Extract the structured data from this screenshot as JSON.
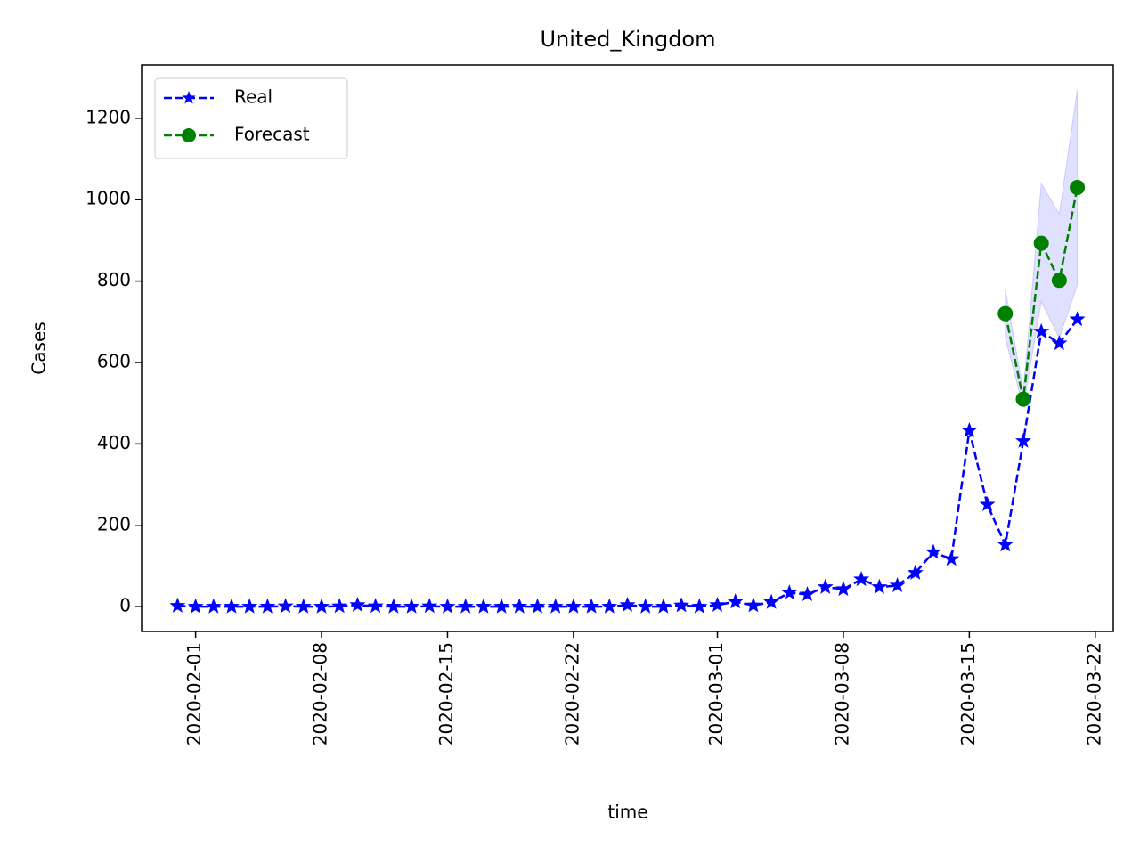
{
  "chart_data": {
    "type": "line",
    "title": "United_Kingdom",
    "xlabel": "time",
    "ylabel": "Cases",
    "series": [
      {
        "name": "Real",
        "color": "#0000ff",
        "marker": "star",
        "linestyle": "dashed",
        "x": [
          "2020-01-31",
          "2020-02-01",
          "2020-02-02",
          "2020-02-03",
          "2020-02-04",
          "2020-02-05",
          "2020-02-06",
          "2020-02-07",
          "2020-02-08",
          "2020-02-09",
          "2020-02-10",
          "2020-02-11",
          "2020-02-12",
          "2020-02-13",
          "2020-02-14",
          "2020-02-15",
          "2020-02-16",
          "2020-02-17",
          "2020-02-18",
          "2020-02-19",
          "2020-02-20",
          "2020-02-21",
          "2020-02-22",
          "2020-02-23",
          "2020-02-24",
          "2020-02-25",
          "2020-02-26",
          "2020-02-27",
          "2020-02-28",
          "2020-02-29",
          "2020-03-01",
          "2020-03-02",
          "2020-03-03",
          "2020-03-04",
          "2020-03-05",
          "2020-03-06",
          "2020-03-07",
          "2020-03-08",
          "2020-03-09",
          "2020-03-10",
          "2020-03-11",
          "2020-03-12",
          "2020-03-13",
          "2020-03-14",
          "2020-03-15",
          "2020-03-16",
          "2020-03-17",
          "2020-03-18",
          "2020-03-19",
          "2020-03-20",
          "2020-03-21"
        ],
        "values": [
          2,
          0,
          0,
          0,
          0,
          0,
          1,
          0,
          0,
          1,
          4,
          1,
          0,
          0,
          1,
          0,
          0,
          0,
          0,
          0,
          0,
          0,
          0,
          0,
          0,
          4,
          0,
          0,
          3,
          0,
          4,
          12,
          3,
          11,
          34,
          30,
          48,
          43,
          67,
          48,
          52,
          83,
          134,
          117,
          433,
          251,
          152,
          407,
          676,
          647,
          706
        ]
      },
      {
        "name": "Forecast",
        "color": "#008000",
        "marker": "circle",
        "linestyle": "dashed",
        "x": [
          "2020-03-17",
          "2020-03-18",
          "2020-03-19",
          "2020-03-20",
          "2020-03-21"
        ],
        "values": [
          720,
          510,
          893,
          802,
          1030
        ],
        "lower": [
          660,
          490,
          750,
          660,
          790
        ],
        "upper": [
          780,
          530,
          1040,
          965,
          1270
        ],
        "band_color": "#0000ff"
      }
    ],
    "xlim": [
      "2020-01-29",
      "2020-03-23"
    ],
    "xticks": [
      "2020-02-01",
      "2020-02-08",
      "2020-02-15",
      "2020-02-22",
      "2020-03-01",
      "2020-03-08",
      "2020-03-15",
      "2020-03-22"
    ],
    "ylim": [
      -61,
      1331
    ],
    "yticks": [
      0,
      200,
      400,
      600,
      800,
      1000,
      1200
    ],
    "legend": "upper-left",
    "grid": false
  }
}
